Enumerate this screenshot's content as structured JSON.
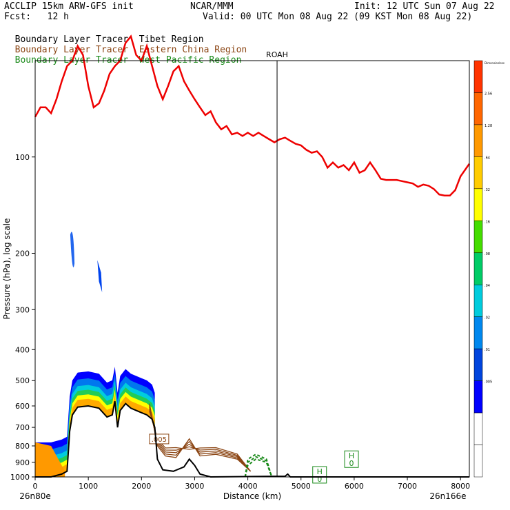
{
  "header": {
    "model": "ACCLIP 15km ARW-GFS init",
    "org": "NCAR/MMM",
    "init": "Init: 12 UTC Sun 07 Aug 22",
    "fcst": "Fcst:   12 h",
    "valid": "Valid: 00 UTC Mon 08 Aug 22 (09 KST Mon 08 Aug 22)"
  },
  "legend": [
    {
      "label": "Boundary Layer Tracer",
      "region": "Tibet Region",
      "color": "#000000"
    },
    {
      "label": "Boundary Layer Tracer",
      "region": "Eastern China Region",
      "color": "#8B4513"
    },
    {
      "label": "Boundary Layer Tracer",
      "region": "West Pacific Region",
      "color": "#1a8a1a"
    }
  ],
  "chart_data": {
    "type": "area",
    "title": "",
    "xlabel": "Distance (km)",
    "ylabel": "Pressure (hPa), log scale",
    "xlim": [
      0,
      8166
    ],
    "ylim": [
      1000,
      50
    ],
    "y_scale": "log",
    "x_ticks": [
      0,
      1000,
      2000,
      3000,
      4000,
      5000,
      6000,
      7000,
      8000
    ],
    "y_ticks": [
      100,
      200,
      300,
      400,
      500,
      600,
      700,
      800,
      900,
      1000
    ],
    "x_start_label": "26n80e",
    "x_end_label": "26n166e",
    "marker": {
      "label": "ROAH",
      "x": 4550
    },
    "contour_labels": [
      ".005",
      "H\n0",
      "H\n0"
    ],
    "colorbar": {
      "title": "Dimensionless",
      "colors": [
        "#ffffff",
        "#ffffff",
        "#0000ff",
        "#0044dd",
        "#0088ee",
        "#00ccdd",
        "#00cc66",
        "#44dd00",
        "#ffff00",
        "#ffcc00",
        "#ff9900",
        "#ff6600",
        "#ff3300"
      ],
      "tick_labels": [
        ".005",
        ".01",
        ".02",
        ".04",
        ".08",
        ".16",
        ".32",
        ".64",
        "1.28",
        "2.56"
      ]
    },
    "series": [
      {
        "name": "",
        "color": "#ee0000",
        "points": [
          [
            0,
            75
          ],
          [
            100,
            70
          ],
          [
            200,
            70
          ],
          [
            300,
            73
          ],
          [
            400,
            66
          ],
          [
            500,
            58
          ],
          [
            600,
            52
          ],
          [
            700,
            50
          ],
          [
            800,
            45
          ],
          [
            900,
            48
          ],
          [
            1000,
            60
          ],
          [
            1100,
            70
          ],
          [
            1200,
            68
          ],
          [
            1300,
            62
          ],
          [
            1400,
            55
          ],
          [
            1500,
            52
          ],
          [
            1600,
            50
          ],
          [
            1700,
            44
          ],
          [
            1800,
            42
          ],
          [
            1900,
            48
          ],
          [
            2000,
            50
          ],
          [
            2100,
            45
          ],
          [
            2200,
            52
          ],
          [
            2300,
            60
          ],
          [
            2400,
            66
          ],
          [
            2500,
            60
          ],
          [
            2600,
            54
          ],
          [
            2700,
            52
          ],
          [
            2800,
            58
          ],
          [
            2900,
            62
          ],
          [
            3000,
            66
          ],
          [
            3100,
            70
          ],
          [
            3200,
            74
          ],
          [
            3300,
            72
          ],
          [
            3400,
            78
          ],
          [
            3500,
            82
          ],
          [
            3600,
            80
          ],
          [
            3700,
            85
          ],
          [
            3800,
            84
          ],
          [
            3900,
            86
          ],
          [
            4000,
            84
          ],
          [
            4100,
            86
          ],
          [
            4200,
            84
          ],
          [
            4300,
            86
          ],
          [
            4400,
            88
          ],
          [
            4500,
            90
          ],
          [
            4600,
            88
          ],
          [
            4700,
            87
          ],
          [
            4800,
            89
          ],
          [
            4900,
            91
          ],
          [
            5000,
            92
          ],
          [
            5100,
            95
          ],
          [
            5200,
            97
          ],
          [
            5300,
            96
          ],
          [
            5400,
            100
          ],
          [
            5500,
            108
          ],
          [
            5600,
            104
          ],
          [
            5700,
            108
          ],
          [
            5800,
            106
          ],
          [
            5900,
            110
          ],
          [
            6000,
            104
          ],
          [
            6100,
            112
          ],
          [
            6200,
            110
          ],
          [
            6300,
            104
          ],
          [
            6400,
            110
          ],
          [
            6500,
            117
          ],
          [
            6600,
            118
          ],
          [
            6700,
            118
          ],
          [
            6800,
            118
          ],
          [
            6900,
            119
          ],
          [
            7000,
            120
          ],
          [
            7100,
            121
          ],
          [
            7200,
            124
          ],
          [
            7300,
            122
          ],
          [
            7400,
            123
          ],
          [
            7500,
            126
          ],
          [
            7600,
            131
          ],
          [
            7700,
            132
          ],
          [
            7800,
            132
          ],
          [
            7900,
            127
          ],
          [
            8000,
            115
          ],
          [
            8166,
            105
          ]
        ]
      },
      {
        "name": "",
        "color": "#000000",
        "points": [
          [
            0,
            1000
          ],
          [
            300,
            1000
          ],
          [
            500,
            980
          ],
          [
            600,
            960
          ],
          [
            650,
            720
          ],
          [
            700,
            640
          ],
          [
            800,
            605
          ],
          [
            1000,
            600
          ],
          [
            1200,
            610
          ],
          [
            1350,
            650
          ],
          [
            1450,
            640
          ],
          [
            1500,
            580
          ],
          [
            1550,
            700
          ],
          [
            1600,
            620
          ],
          [
            1700,
            590
          ],
          [
            1800,
            610
          ],
          [
            1900,
            620
          ],
          [
            2000,
            630
          ],
          [
            2100,
            640
          ],
          [
            2200,
            660
          ],
          [
            2250,
            700
          ],
          [
            2300,
            880
          ],
          [
            2400,
            950
          ],
          [
            2600,
            960
          ],
          [
            2800,
            930
          ],
          [
            2900,
            880
          ],
          [
            3000,
            920
          ],
          [
            3100,
            980
          ],
          [
            3300,
            1000
          ],
          [
            4700,
            995
          ],
          [
            4750,
            980
          ],
          [
            4800,
            1000
          ],
          [
            8166,
            1000
          ]
        ]
      }
    ]
  }
}
